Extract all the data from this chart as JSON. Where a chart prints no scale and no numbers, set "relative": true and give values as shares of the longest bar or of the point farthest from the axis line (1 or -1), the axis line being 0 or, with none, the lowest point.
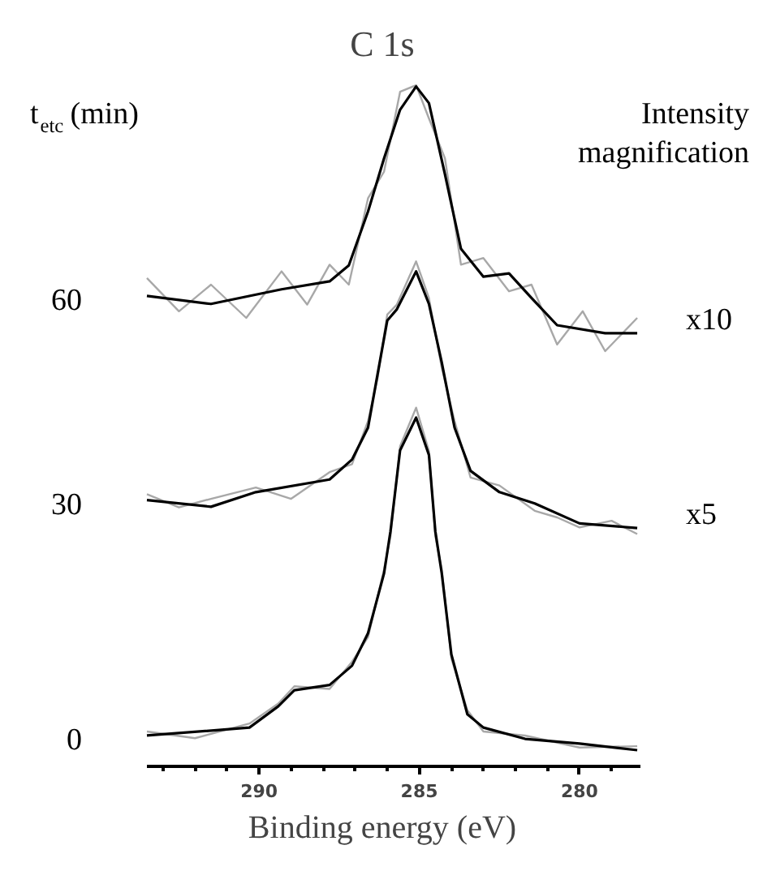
{
  "chart_data": {
    "type": "line",
    "title": "C 1s",
    "xlabel": "Binding energy (eV)",
    "relative": true,
    "grid": false,
    "marker": "none",
    "line_style": "solid",
    "xlim": [
      293.5,
      278.1
    ],
    "xticks": [
      {
        "value": 293,
        "label": null
      },
      {
        "value": 292,
        "label": null
      },
      {
        "value": 291,
        "label": null
      },
      290,
      {
        "value": 289,
        "label": null
      },
      {
        "value": 288,
        "label": null
      },
      {
        "value": 287,
        "label": null
      },
      {
        "value": 286,
        "label": null
      },
      285,
      {
        "value": 284,
        "label": null
      },
      {
        "value": 283,
        "label": null
      },
      {
        "value": 282,
        "label": null
      },
      {
        "value": 281,
        "label": null
      },
      280,
      {
        "value": 279,
        "label": null
      }
    ],
    "tick_labels": "x",
    "annotations": [
      "t$_{etc}$ (min)",
      "Intensity magnification",
      {
        "text": "x10",
        "x": 278.2,
        "y": 0.627
      },
      {
        "text": "x5",
        "x": 278.2,
        "y": 0.334
      }
    ],
    "series": [
      {
        "color": "#a8a8a8",
        "x": [
          293.5,
          292.5,
          291.5,
          290.4,
          289.3,
          288.5,
          287.8,
          287.2,
          286.6,
          286.1,
          285.6,
          285.1,
          284.7,
          284.2,
          283.7,
          283.0,
          282.2,
          281.5,
          280.7,
          279.9,
          279.2,
          278.2
        ],
        "values": [
          0.71,
          0.66,
          0.7,
          0.65,
          0.72,
          0.67,
          0.73,
          0.7,
          0.83,
          0.87,
          0.99,
          1.0,
          0.95,
          0.89,
          0.73,
          0.74,
          0.69,
          0.7,
          0.61,
          0.66,
          0.6,
          0.65
        ]
      },
      {
        "color": "#a8a8a8",
        "x": [
          293.5,
          292.5,
          291.5,
          290.1,
          289.0,
          287.8,
          287.1,
          286.6,
          286.3,
          286.0,
          285.7,
          285.1,
          284.7,
          284.3,
          283.9,
          283.4,
          282.5,
          281.4,
          280.7,
          280.0,
          279.0,
          278.2
        ],
        "values": [
          0.385,
          0.365,
          0.378,
          0.395,
          0.378,
          0.418,
          0.43,
          0.495,
          0.56,
          0.655,
          0.67,
          0.735,
          0.68,
          0.575,
          0.495,
          0.41,
          0.398,
          0.36,
          0.35,
          0.335,
          0.345,
          0.325
        ]
      },
      {
        "color": "#a8a8a8",
        "x": [
          293.5,
          292.0,
          290.3,
          289.4,
          288.9,
          287.8,
          287.1,
          286.6,
          286.1,
          285.9,
          285.6,
          285.1,
          284.7,
          284.5,
          284.3,
          284.0,
          283.5,
          283.0,
          281.7,
          280.0,
          278.2
        ],
        "values": [
          0.028,
          0.018,
          0.04,
          0.07,
          0.096,
          0.092,
          0.133,
          0.17,
          0.272,
          0.322,
          0.457,
          0.515,
          0.45,
          0.322,
          0.272,
          0.138,
          0.06,
          0.028,
          0.022,
          0.004,
          0.006
        ]
      },
      {
        "name": "60",
        "color": "#000000",
        "x": [
          293.5,
          291.5,
          289.3,
          287.8,
          287.2,
          286.6,
          286.1,
          285.6,
          285.1,
          284.7,
          284.2,
          283.7,
          283.0,
          282.2,
          281.5,
          280.7,
          279.2,
          278.2
        ],
        "values": [
          0.683,
          0.671,
          0.693,
          0.705,
          0.729,
          0.81,
          0.89,
          0.963,
          0.998,
          0.973,
          0.866,
          0.754,
          0.712,
          0.717,
          0.68,
          0.639,
          0.627,
          0.627
        ]
      },
      {
        "name": "30",
        "color": "#000000",
        "x": [
          293.5,
          291.5,
          290.1,
          287.8,
          287.1,
          286.6,
          286.3,
          286.0,
          285.7,
          285.1,
          284.7,
          284.3,
          283.9,
          283.4,
          282.5,
          281.4,
          280.0,
          278.2
        ],
        "values": [
          0.376,
          0.366,
          0.388,
          0.407,
          0.437,
          0.485,
          0.566,
          0.646,
          0.663,
          0.72,
          0.671,
          0.583,
          0.485,
          0.42,
          0.388,
          0.371,
          0.341,
          0.334
        ]
      },
      {
        "name": "0",
        "color": "#000000",
        "x": [
          293.5,
          290.3,
          289.4,
          288.9,
          287.8,
          287.1,
          286.6,
          286.1,
          285.9,
          285.6,
          285.1,
          284.7,
          284.5,
          284.3,
          284.0,
          283.5,
          283.0,
          281.7,
          280.0,
          278.2
        ],
        "values": [
          0.022,
          0.034,
          0.066,
          0.09,
          0.098,
          0.127,
          0.176,
          0.266,
          0.329,
          0.451,
          0.5,
          0.444,
          0.329,
          0.266,
          0.144,
          0.054,
          0.034,
          0.017,
          0.01,
          0.0
        ]
      }
    ]
  }
}
